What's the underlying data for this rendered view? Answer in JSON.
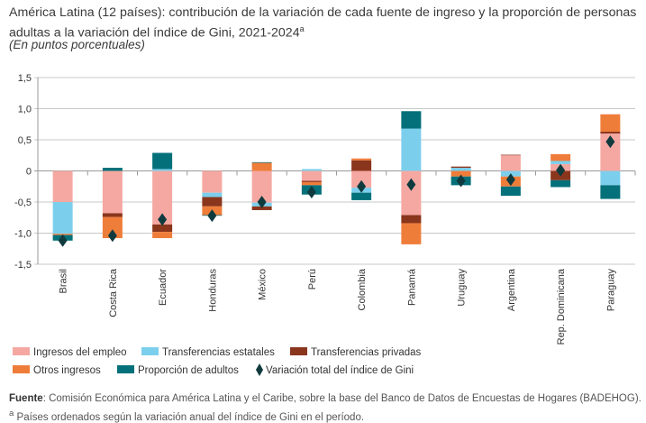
{
  "chart_data": {
    "type": "bar",
    "stacked": true,
    "title": "América Latina (12 países): contribución de la variación de cada fuente de ingreso y la proporción de personas adultas a la variación del índice de Gini, 2021-2024",
    "title_note_marker": "a",
    "subtitle": "(En puntos porcentuales)",
    "ylim": [
      -1.5,
      1.5
    ],
    "yticks": [
      "1,5",
      "1,0",
      "0,5",
      "0",
      "-0,5",
      "-1,0",
      "-1,5"
    ],
    "ytick_values": [
      1.5,
      1.0,
      0.5,
      0,
      -0.5,
      -1.0,
      -1.5
    ],
    "grid": true,
    "legend_position": "bottom",
    "categories": [
      "Brasil",
      "Costa Rica",
      "Ecuador",
      "Honduras",
      "México",
      "Perú",
      "Colombia",
      "Panamá",
      "Uruguay",
      "Argentina",
      "Rep. Dominicana",
      "Paraguay"
    ],
    "series": [
      {
        "name": "Ingresos del empleo",
        "color": "#f5a8a2",
        "values": [
          -0.5,
          -0.68,
          -0.86,
          -0.35,
          -0.51,
          -0.16,
          -0.27,
          -0.71,
          0.0,
          0.25,
          0.11,
          0.6
        ]
      },
      {
        "name": "Transferencias estatales",
        "color": "#7ccfec",
        "values": [
          -0.51,
          0.0,
          0.03,
          -0.07,
          -0.06,
          0.03,
          -0.08,
          0.68,
          0.05,
          -0.09,
          0.05,
          -0.23
        ]
      },
      {
        "name": "Transferencias privadas",
        "color": "#8a361d",
        "values": [
          0.0,
          -0.06,
          -0.12,
          -0.15,
          -0.06,
          -0.02,
          0.17,
          -0.13,
          0.02,
          0.01,
          -0.15,
          0.03
        ]
      },
      {
        "name": "Otros ingresos",
        "color": "#ef7d3a",
        "values": [
          -0.02,
          -0.34,
          -0.1,
          -0.14,
          0.13,
          -0.05,
          0.03,
          -0.34,
          -0.09,
          -0.16,
          0.11,
          0.28
        ]
      },
      {
        "name": "Proporción de adultos",
        "color": "#04707a",
        "values": [
          -0.09,
          0.05,
          0.26,
          -0.01,
          0.01,
          -0.15,
          -0.12,
          0.28,
          -0.14,
          -0.15,
          -0.11,
          -0.22
        ]
      }
    ],
    "total": {
      "name": "Variación total del índice de Gini",
      "color": "#0f3a3e",
      "marker": "diamond",
      "values": [
        -1.12,
        -1.04,
        -0.78,
        -0.72,
        -0.5,
        -0.34,
        -0.25,
        -0.22,
        -0.16,
        -0.14,
        0.01,
        0.47
      ]
    }
  },
  "footer": {
    "source_label": "Fuente",
    "source_text": ":  Comisión Económica para América Latina y el Caribe, sobre la base del Banco de Datos de Encuestas de Hogares (BADEHOG).",
    "note_marker": "a",
    "note_text": " Países ordenados según la variación anual del índice de Gini en el período."
  }
}
